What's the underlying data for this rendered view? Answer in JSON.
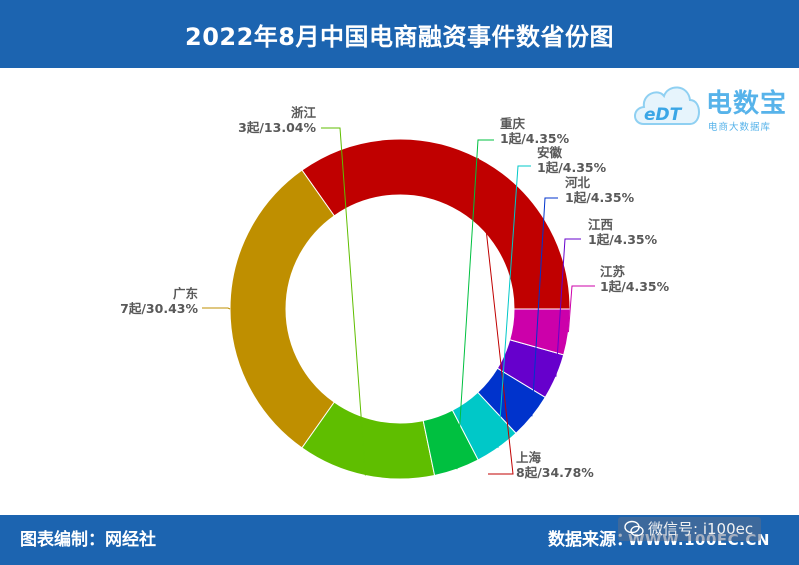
{
  "header": {
    "title": "2022年8月中国电商融资事件数省份图"
  },
  "logo": {
    "main": "电数宝",
    "sub": "电商大数据库",
    "mark": "eDT"
  },
  "footer": {
    "left": "图表编制：网经社",
    "right": "数据来源：",
    "url": "WWW.100EC.CN",
    "wechat": "微信号: i100ec"
  },
  "chart_data": {
    "type": "pie",
    "donut": true,
    "title": "2022年8月中国电商融资事件数省份图",
    "unit": "起",
    "slices": [
      {
        "name": "上海",
        "value": 8,
        "percent": "34.78%",
        "label": "8起/34.78%",
        "color": "#c00000"
      },
      {
        "name": "广东",
        "value": 7,
        "percent": "30.43%",
        "label": "7起/30.43%",
        "color": "#bf8f00"
      },
      {
        "name": "浙江",
        "value": 3,
        "percent": "13.04%",
        "label": "3起/13.04%",
        "color": "#5fbe00"
      },
      {
        "name": "重庆",
        "value": 1,
        "percent": "4.35%",
        "label": "1起/4.35%",
        "color": "#00c040"
      },
      {
        "name": "安徽",
        "value": 1,
        "percent": "4.35%",
        "label": "1起/4.35%",
        "color": "#00c8c8"
      },
      {
        "name": "河北",
        "value": 1,
        "percent": "4.35%",
        "label": "1起/4.35%",
        "color": "#0033cc"
      },
      {
        "name": "江西",
        "value": 1,
        "percent": "4.35%",
        "label": "1起/4.35%",
        "color": "#6600cc"
      },
      {
        "name": "江苏",
        "value": 1,
        "percent": "4.35%",
        "label": "1起/4.35%",
        "color": "#cc00aa"
      }
    ]
  }
}
